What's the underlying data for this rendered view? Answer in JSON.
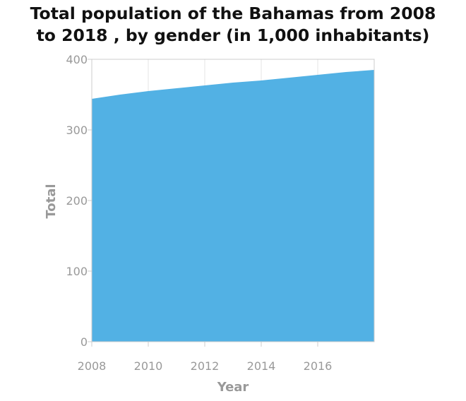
{
  "chart_data": {
    "type": "area",
    "title_lines": [
      "Total population of the Bahamas from 2008",
      "to 2018 , by gender (in 1,000 inhabitants)"
    ],
    "xlabel": "Year",
    "ylabel": "Total",
    "x": [
      2008,
      2009,
      2010,
      2011,
      2012,
      2013,
      2014,
      2015,
      2016,
      2017,
      2018
    ],
    "series": [
      {
        "values": [
          344,
          350,
          355,
          359,
          363,
          367,
          370,
          374,
          378,
          382,
          385
        ]
      }
    ],
    "xlim": [
      2008,
      2018
    ],
    "ylim": [
      0,
      400
    ],
    "x_ticks": [
      2008,
      2010,
      2012,
      2014,
      2016
    ],
    "y_ticks": [
      0,
      100,
      200,
      300,
      400
    ],
    "grid": true,
    "colors": {
      "area": "#52b1e4",
      "grid": "#e6e6e6",
      "axis": "#cccccc"
    }
  }
}
